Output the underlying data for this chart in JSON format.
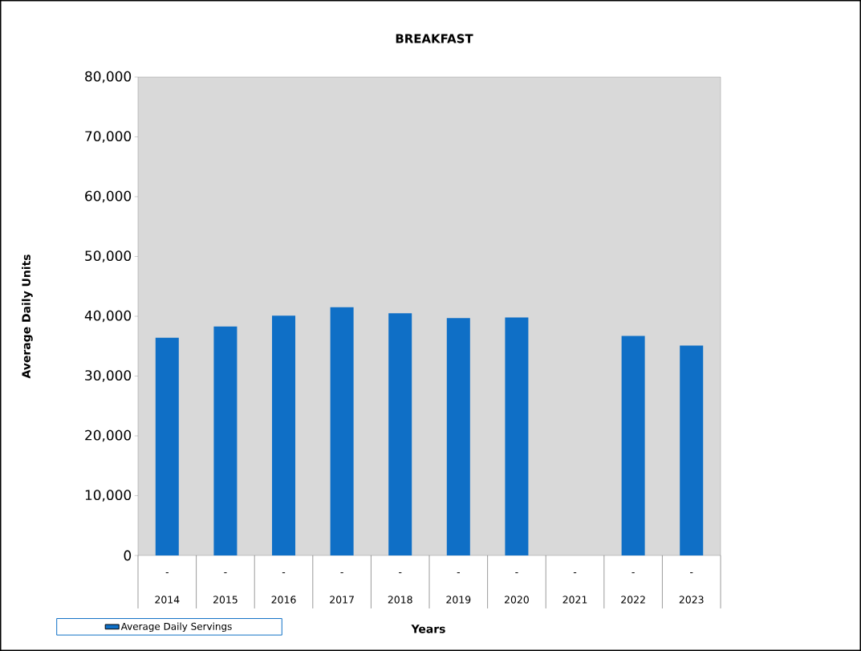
{
  "chart_data": {
    "type": "bar",
    "title": "BREAKFAST",
    "xlabel": "Years",
    "ylabel": "Average Daily Units",
    "categories": [
      "2014",
      "2015",
      "2016",
      "2017",
      "2018",
      "2019",
      "2020",
      "2021",
      "2022",
      "2023"
    ],
    "series": [
      {
        "name": "Average Daily Servings",
        "color": "#0f6fc6",
        "values": [
          36400,
          38300,
          40100,
          41500,
          40500,
          39700,
          39800,
          null,
          36700,
          35100
        ],
        "value_labels": [
          "-",
          "-",
          "-",
          "-",
          "-",
          "-",
          "-",
          "-",
          "-",
          "-"
        ]
      }
    ],
    "ylim": [
      0,
      80000
    ],
    "yticks": [
      0,
      {
        "value": 10000,
        "label": "10,000"
      },
      {
        "value": 20000,
        "label": "20,000"
      },
      {
        "value": 30000,
        "label": "30,000"
      },
      {
        "value": 40000,
        "label": "40,000"
      },
      {
        "value": 50000,
        "label": "50,000"
      },
      {
        "value": 60000,
        "label": "60,000"
      },
      {
        "value": 70000,
        "label": "70,000"
      },
      {
        "value": 80000,
        "label": "80,000"
      }
    ],
    "grid": false,
    "legend": "bottom left"
  }
}
